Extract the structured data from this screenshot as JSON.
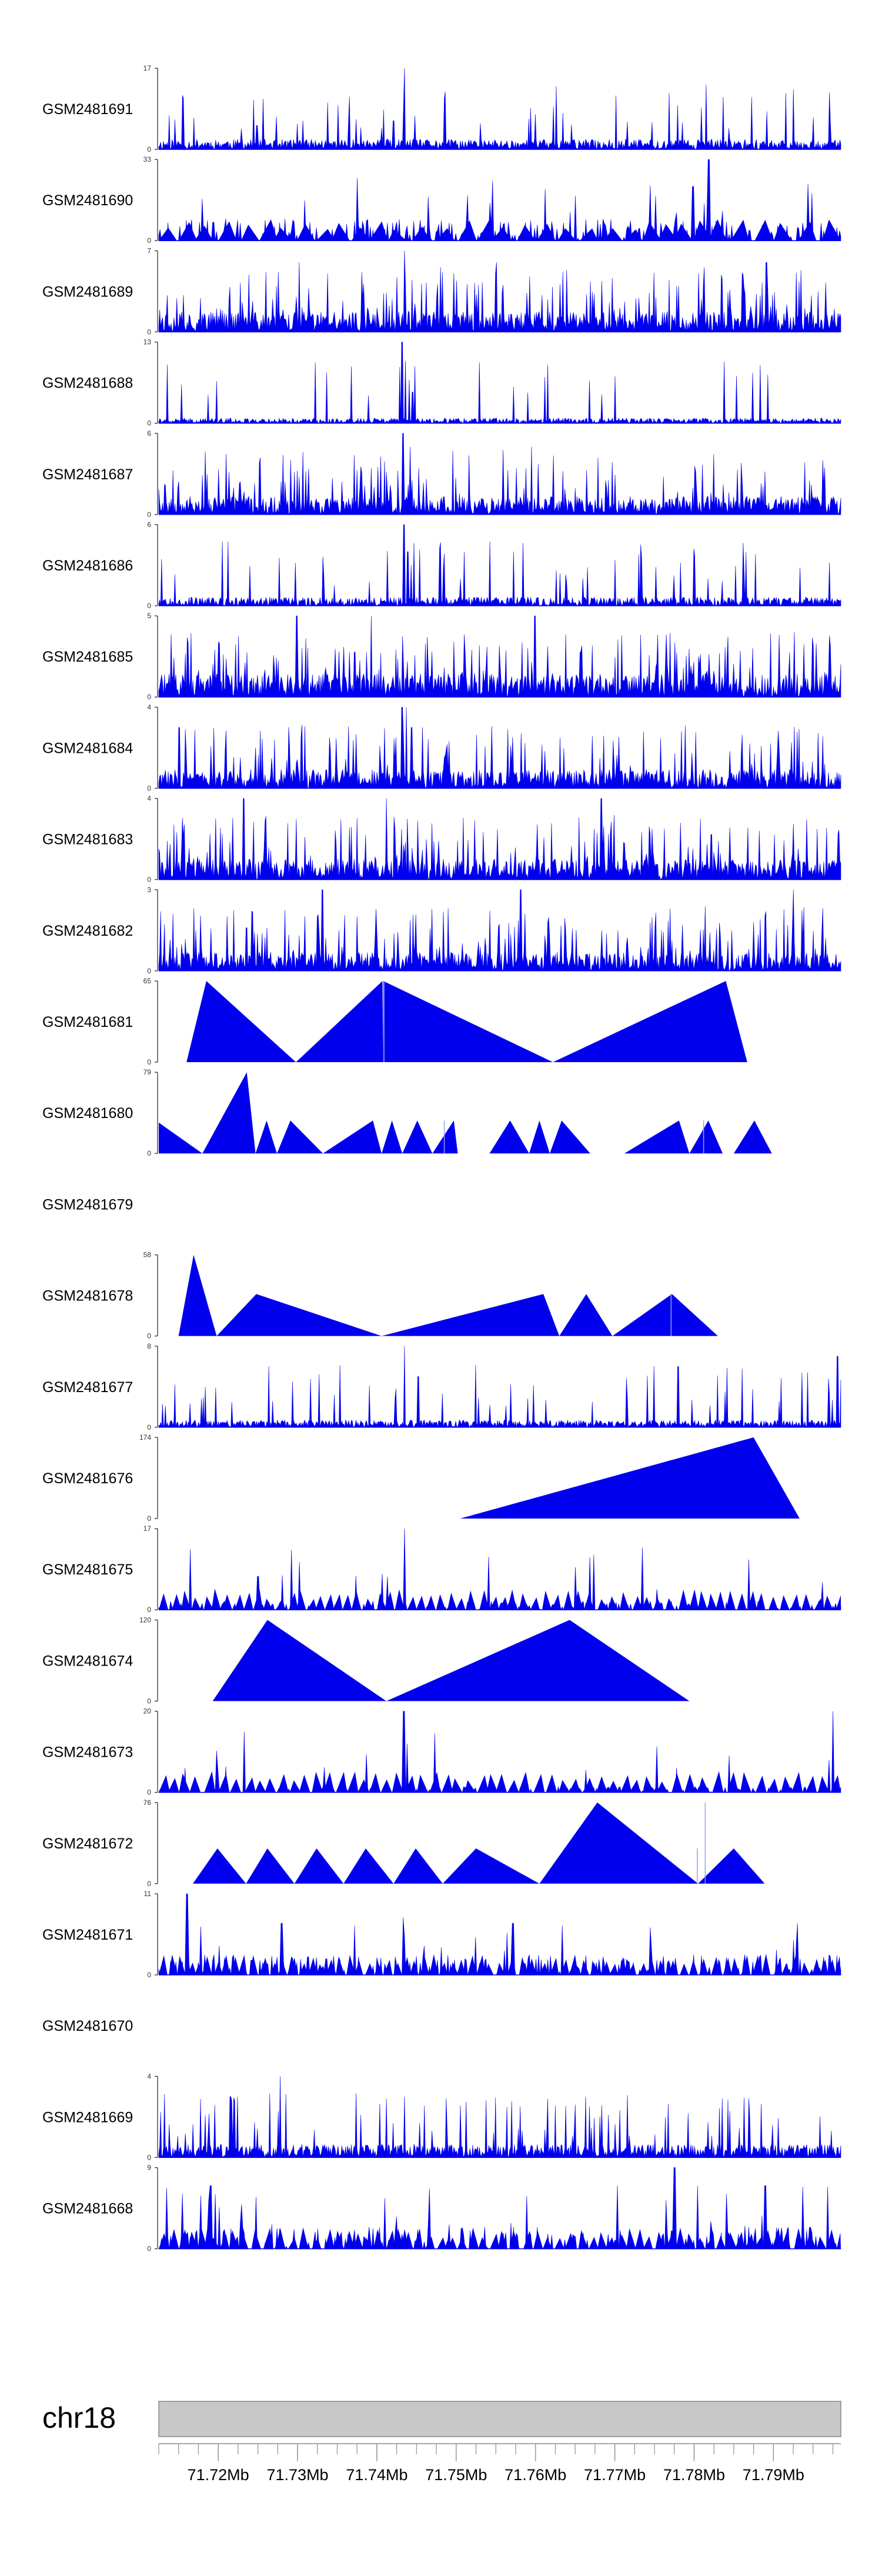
{
  "colors": {
    "fill": "#0000ee",
    "axis": "#333333",
    "ideogram": "#c8c8c8",
    "ideogram_edge": "#888888"
  },
  "chart_data": {
    "type": "area",
    "title": "",
    "chromosome": "chr18",
    "xlim": [
      71.7125,
      71.7985
    ],
    "xticks": [
      71.72,
      71.73,
      71.74,
      71.75,
      71.76,
      71.77,
      71.78,
      71.79
    ],
    "xtick_labels": [
      "71.72Mb",
      "71.73Mb",
      "71.74Mb",
      "71.75Mb",
      "71.76Mb",
      "71.77Mb",
      "71.78Mb",
      "71.79Mb"
    ],
    "tracks": [
      {
        "sample": "GSM2481691",
        "ymax": 17,
        "y0": "0",
        "ymax_label": "17",
        "style": "dense",
        "seed": 11,
        "base": 0.14,
        "spike_prob": 0.06,
        "spikes": [
          [
            71.7435,
            17
          ],
          [
            71.7421,
            6
          ],
          [
            71.7249,
            5
          ]
        ]
      },
      {
        "sample": "GSM2481690",
        "ymax": 33,
        "y0": "0",
        "ymax_label": "33",
        "style": "mixed",
        "seed": 23,
        "base": 0.3,
        "tri_width": 0.0023,
        "spike_prob": 0.05,
        "spikes": [
          [
            71.7818,
            33
          ],
          [
            71.7799,
            22
          ],
          [
            71.7813,
            15
          ],
          [
            71.7836,
            12
          ]
        ]
      },
      {
        "sample": "GSM2481689",
        "ymax": 7,
        "y0": "0",
        "ymax_label": "7",
        "style": "dense",
        "seed": 37,
        "base": 0.28,
        "spike_prob": 0.14,
        "spikes": [
          [
            71.7435,
            7
          ],
          [
            71.7302,
            6
          ],
          [
            71.7551,
            6
          ],
          [
            71.7891,
            6
          ]
        ]
      },
      {
        "sample": "GSM2481688",
        "ymax": 13,
        "y0": "0",
        "ymax_label": "13",
        "style": "dense",
        "seed": 41,
        "base": 0.07,
        "spike_prob": 0.04,
        "spikes": [
          [
            71.7432,
            13
          ],
          [
            71.7436,
            10
          ],
          [
            71.7441,
            7
          ],
          [
            71.7445,
            5
          ],
          [
            71.7429,
            9
          ]
        ]
      },
      {
        "sample": "GSM2481687",
        "ymax": 6,
        "y0": "0",
        "ymax_label": "6",
        "style": "dense",
        "seed": 53,
        "base": 0.25,
        "spike_prob": 0.14,
        "spikes": [
          [
            71.7433,
            6
          ],
          [
            71.7442,
            5
          ],
          [
            71.7595,
            5
          ]
        ]
      },
      {
        "sample": "GSM2481686",
        "ymax": 6,
        "y0": "0",
        "ymax_label": "6",
        "style": "dense",
        "seed": 67,
        "base": 0.12,
        "spike_prob": 0.06,
        "spikes": [
          [
            71.7434,
            6
          ],
          [
            71.7439,
            4
          ],
          [
            71.7443,
            3
          ]
        ]
      },
      {
        "sample": "GSM2481685",
        "ymax": 5,
        "y0": "0",
        "ymax_label": "5",
        "style": "dense",
        "seed": 71,
        "base": 0.32,
        "spike_prob": 0.18,
        "spikes": [
          [
            71.7299,
            5
          ],
          [
            71.7393,
            5
          ],
          [
            71.7599,
            5
          ]
        ]
      },
      {
        "sample": "GSM2481684",
        "ymax": 4,
        "y0": "0",
        "ymax_label": "4",
        "style": "dense",
        "seed": 83,
        "base": 0.26,
        "spike_prob": 0.12,
        "spikes": [
          [
            71.7432,
            4
          ],
          [
            71.7437,
            4
          ],
          [
            71.7444,
            3
          ],
          [
            71.7151,
            3
          ]
        ]
      },
      {
        "sample": "GSM2481683",
        "ymax": 4,
        "y0": "0",
        "ymax_label": "4",
        "style": "dense",
        "seed": 97,
        "base": 0.28,
        "spike_prob": 0.15,
        "spikes": [
          [
            71.7232,
            4
          ],
          [
            71.7412,
            4
          ],
          [
            71.7683,
            4
          ]
        ]
      },
      {
        "sample": "GSM2481682",
        "ymax": 3,
        "y0": "0",
        "ymax_label": "3",
        "style": "dense",
        "seed": 101,
        "base": 0.26,
        "spike_prob": 0.15,
        "spikes": [
          [
            71.7331,
            3
          ],
          [
            71.7581,
            3
          ],
          [
            71.7925,
            3
          ]
        ]
      },
      {
        "sample": "GSM2481681",
        "ymax": 65,
        "y0": "0",
        "ymax_label": "65",
        "style": "triangles",
        "triangles": [
          [
            71.716,
            71.7185,
            71.7298,
            65
          ],
          [
            71.7298,
            71.7407,
            71.7408,
            65
          ],
          [
            71.7408,
            71.7408,
            71.7622,
            65
          ],
          [
            71.7622,
            71.784,
            71.7867,
            65
          ]
        ],
        "lines": [
          [
            71.7409,
            65
          ]
        ]
      },
      {
        "sample": "GSM2481680",
        "ymax": 79,
        "y0": "0",
        "ymax_label": "79",
        "style": "triangles",
        "triangles": [
          [
            71.7125,
            71.7125,
            71.718,
            30
          ],
          [
            71.718,
            71.7236,
            71.7247,
            79
          ],
          [
            71.7247,
            71.7261,
            71.7274,
            32
          ],
          [
            71.7274,
            71.7291,
            71.7332,
            32
          ],
          [
            71.7332,
            71.7395,
            71.7406,
            32
          ],
          [
            71.7406,
            71.7419,
            71.7432,
            32
          ],
          [
            71.7432,
            71.7451,
            71.747,
            32
          ],
          [
            71.747,
            71.7497,
            71.7502,
            32
          ],
          [
            71.7542,
            71.7568,
            71.7592,
            32
          ],
          [
            71.7592,
            71.7605,
            71.7618,
            32
          ],
          [
            71.7618,
            71.7633,
            71.7669,
            32
          ],
          [
            71.7712,
            71.7781,
            71.7794,
            32
          ],
          [
            71.7794,
            71.7818,
            71.7836,
            32
          ],
          [
            71.785,
            71.7876,
            71.7898,
            32
          ]
        ],
        "lines": [
          [
            71.7485,
            32
          ],
          [
            71.7812,
            32
          ]
        ]
      },
      {
        "sample": "GSM2481679",
        "ymax": 0,
        "y0": "",
        "ymax_label": "",
        "style": "empty"
      },
      {
        "sample": "GSM2481678",
        "ymax": 58,
        "y0": "0",
        "ymax_label": "58",
        "style": "triangles",
        "triangles": [
          [
            71.715,
            71.7169,
            71.7198,
            58
          ],
          [
            71.7198,
            71.7248,
            71.7406,
            30
          ],
          [
            71.7406,
            71.761,
            71.763,
            30
          ],
          [
            71.763,
            71.7664,
            71.7697,
            30
          ],
          [
            71.7697,
            71.7772,
            71.783,
            30
          ]
        ],
        "lines": [
          [
            71.7771,
            30
          ]
        ]
      },
      {
        "sample": "GSM2481677",
        "ymax": 8,
        "y0": "0",
        "ymax_label": "8",
        "style": "dense",
        "seed": 113,
        "base": 0.1,
        "spike_prob": 0.08,
        "spikes": [
          [
            71.7435,
            8
          ],
          [
            71.778,
            6
          ],
          [
            71.7981,
            7
          ],
          [
            71.7452,
            5
          ]
        ]
      },
      {
        "sample": "GSM2481676",
        "ymax": 174,
        "y0": "0",
        "ymax_label": "174",
        "style": "triangles",
        "triangles": [
          [
            71.7505,
            71.7875,
            71.7933,
            174
          ]
        ],
        "lines": []
      },
      {
        "sample": "GSM2481675",
        "ymax": 17,
        "y0": "0",
        "ymax_label": "17",
        "style": "mixed",
        "seed": 127,
        "base": 0.12,
        "tri_width": 0.0012,
        "spike_prob": 0.05,
        "spikes": [
          [
            71.7435,
            17
          ],
          [
            71.7302,
            10
          ],
          [
            71.725,
            7
          ]
        ]
      },
      {
        "sample": "GSM2481674",
        "ymax": 120,
        "y0": "0",
        "ymax_label": "120",
        "style": "triangles",
        "triangles": [
          [
            71.7193,
            71.7262,
            71.7412,
            120
          ],
          [
            71.7412,
            71.7643,
            71.7794,
            120
          ]
        ],
        "lines": []
      },
      {
        "sample": "GSM2481673",
        "ymax": 20,
        "y0": "0",
        "ymax_label": "20",
        "style": "mixed",
        "seed": 131,
        "base": 0.08,
        "tri_width": 0.0014,
        "spike_prob": 0.04,
        "spikes": [
          [
            71.7434,
            20
          ],
          [
            71.7975,
            20
          ],
          [
            71.7438,
            12
          ],
          [
            71.797,
            8
          ]
        ]
      },
      {
        "sample": "GSM2481672",
        "ymax": 76,
        "y0": "0",
        "ymax_label": "76",
        "style": "triangles",
        "triangles": [
          [
            71.7168,
            71.7199,
            71.7235,
            33
          ],
          [
            71.7235,
            71.7262,
            71.7296,
            33
          ],
          [
            71.7296,
            71.7324,
            71.7358,
            33
          ],
          [
            71.7358,
            71.7386,
            71.7421,
            33
          ],
          [
            71.7421,
            71.7449,
            71.7483,
            33
          ],
          [
            71.7483,
            71.7525,
            71.7605,
            33
          ],
          [
            71.7605,
            71.7678,
            71.7805,
            76
          ],
          [
            71.7805,
            71.785,
            71.7889,
            33
          ]
        ],
        "lines": [
          [
            71.7804,
            33
          ],
          [
            71.7814,
            76
          ]
        ]
      },
      {
        "sample": "GSM2481671",
        "ymax": 11,
        "y0": "0",
        "ymax_label": "11",
        "style": "mixed",
        "seed": 137,
        "base": 0.28,
        "tri_width": 0.0011,
        "spike_prob": 0.08,
        "spikes": [
          [
            71.7161,
            11
          ],
          [
            71.728,
            7
          ],
          [
            71.7572,
            7
          ],
          [
            71.793,
            7
          ]
        ]
      },
      {
        "sample": "GSM2481670",
        "ymax": 0,
        "y0": "",
        "ymax_label": "",
        "style": "empty"
      },
      {
        "sample": "GSM2481669",
        "ymax": 4,
        "y0": "0",
        "ymax_label": "4",
        "style": "dense",
        "seed": 149,
        "base": 0.18,
        "spike_prob": 0.12,
        "spikes": [
          [
            71.7278,
            4
          ],
          [
            71.7435,
            3
          ],
          [
            71.7215,
            3
          ]
        ]
      },
      {
        "sample": "GSM2481668",
        "ymax": 9,
        "y0": "0",
        "ymax_label": "9",
        "style": "mixed",
        "seed": 157,
        "base": 0.3,
        "tri_width": 0.0012,
        "spike_prob": 0.1,
        "spikes": [
          [
            71.7775,
            9
          ],
          [
            71.719,
            7
          ],
          [
            71.789,
            7
          ]
        ]
      }
    ]
  }
}
